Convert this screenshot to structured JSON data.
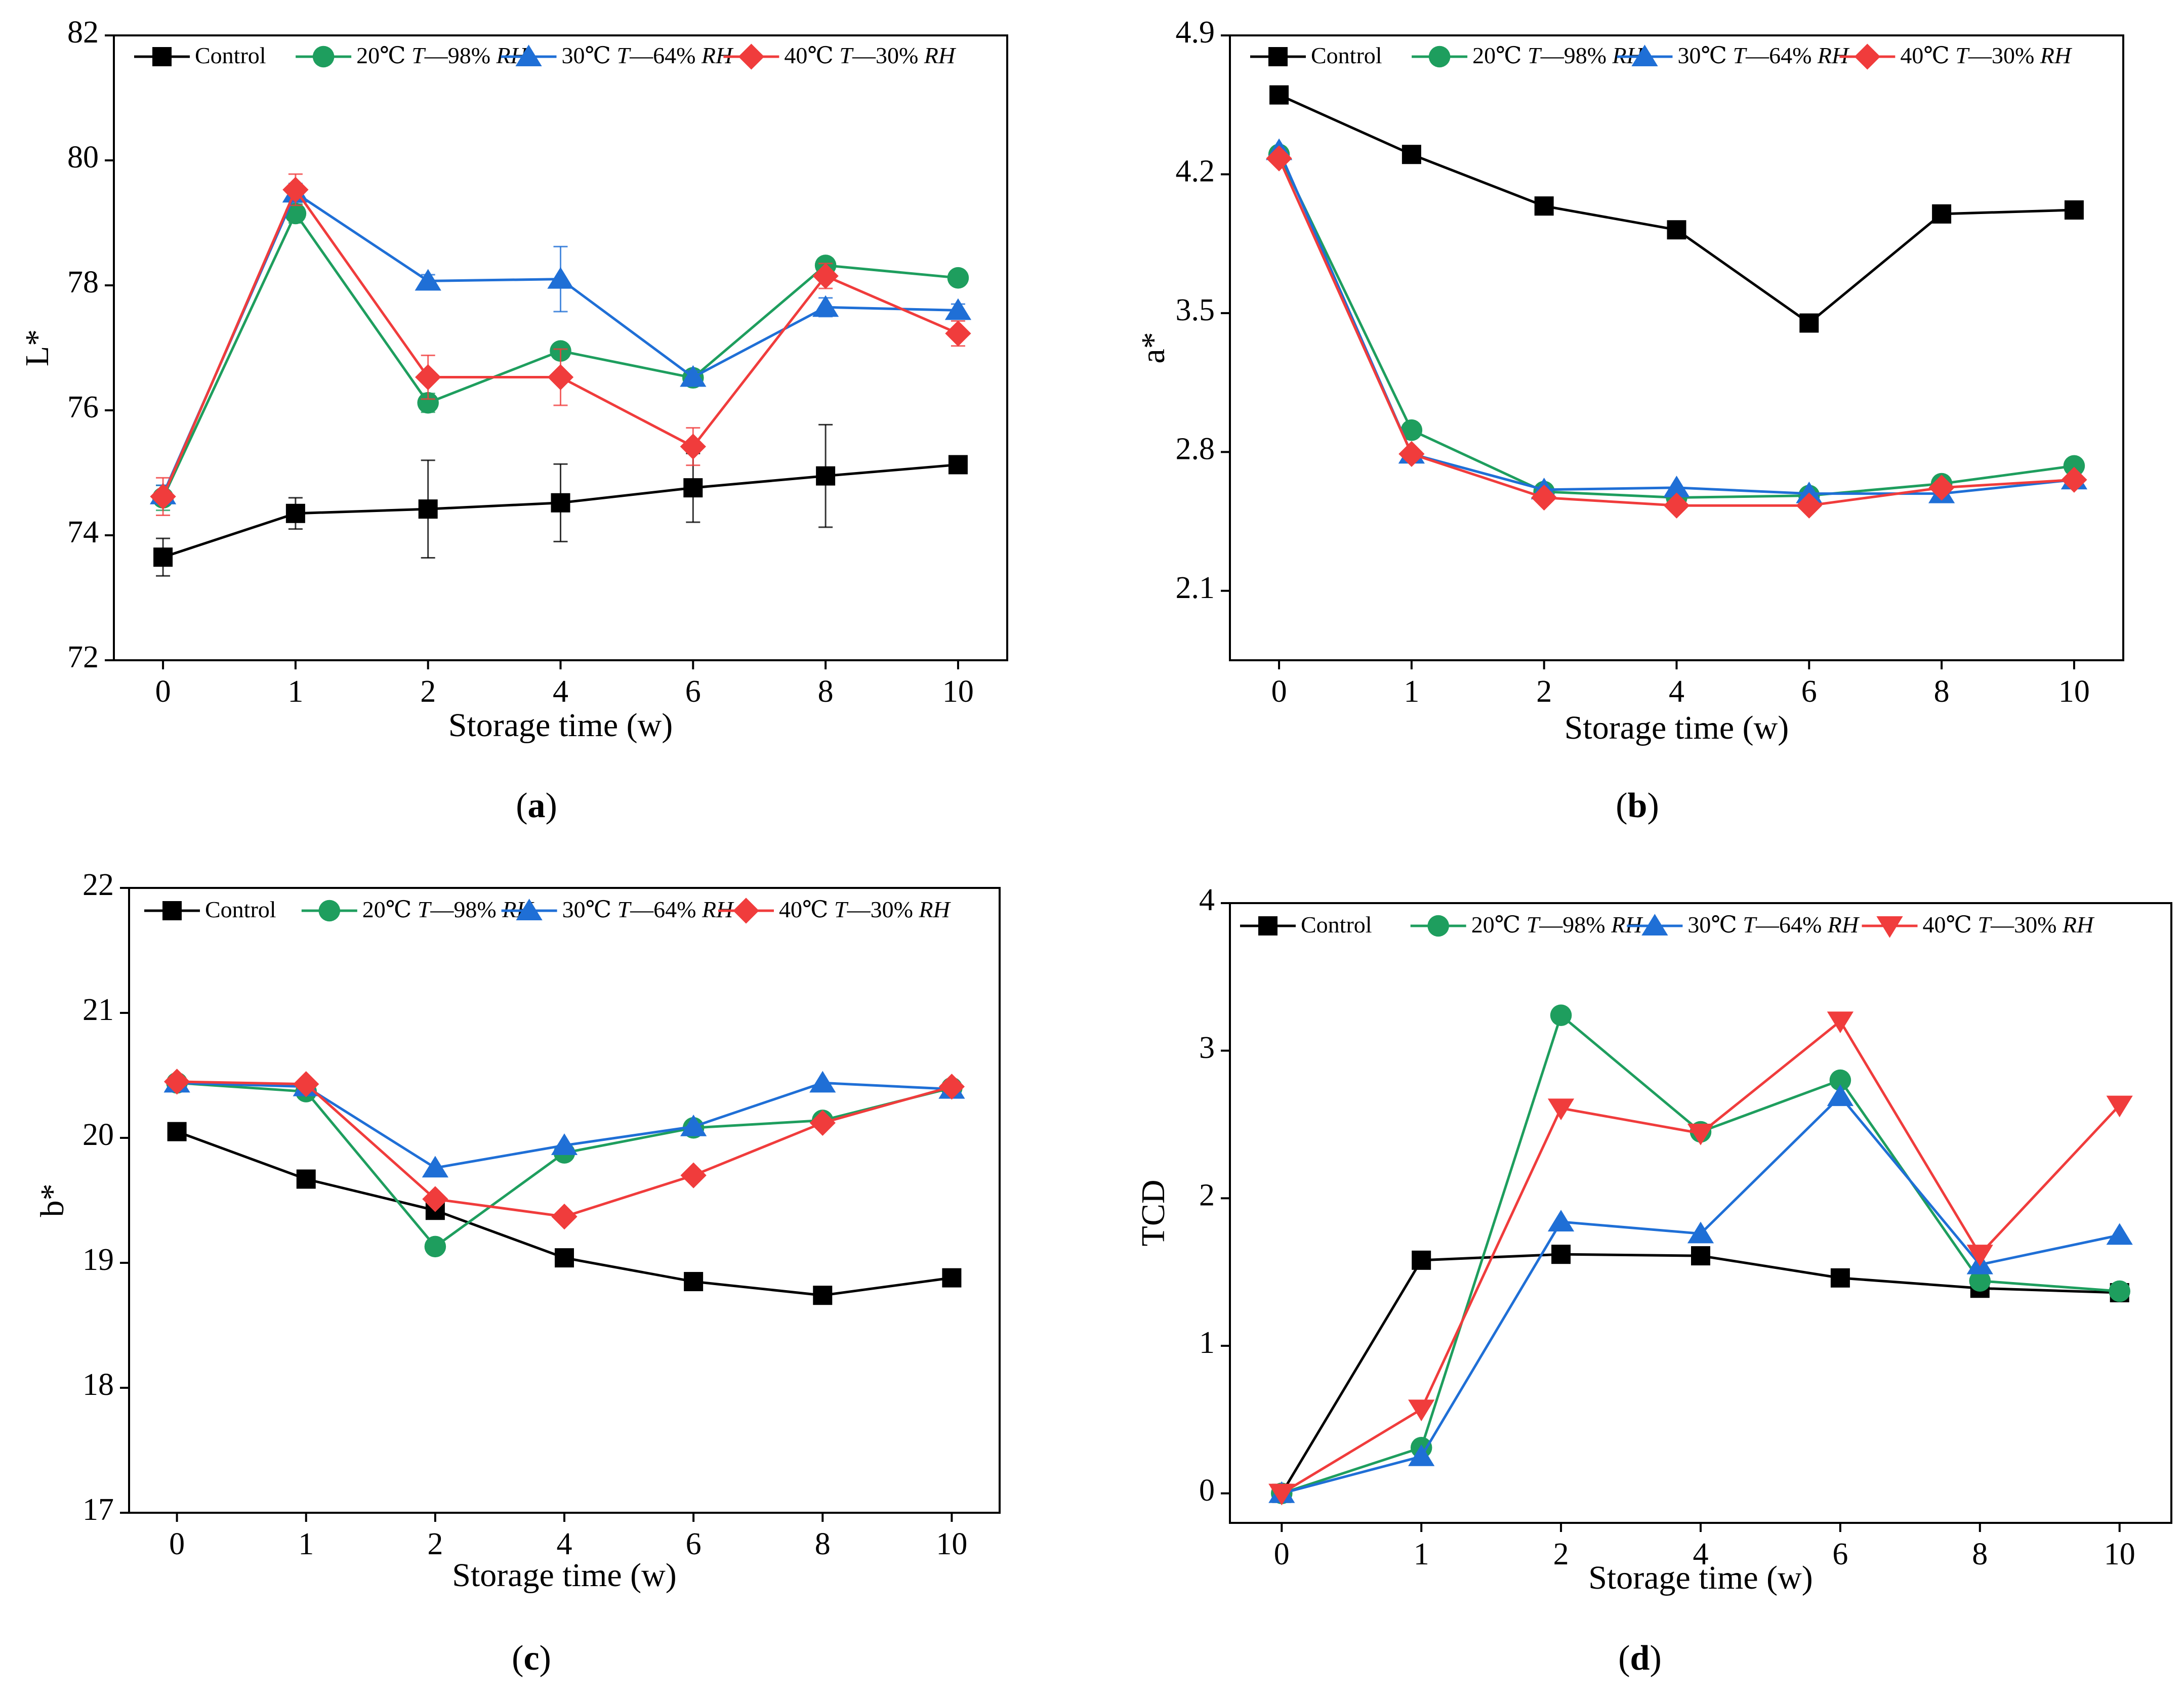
{
  "figure": {
    "panel_labels": [
      "(a)",
      "(b)",
      "(c)",
      "(d)"
    ]
  },
  "colors": {
    "Control": "#000000",
    "20C": "#1e9e5e",
    "30C": "#1f6fd6",
    "40C": "#f03c3c"
  },
  "chart_data": [
    {
      "id": "a",
      "type": "line",
      "panel_label": "(a)",
      "ylabel": "L*",
      "xlabel": "Storage time (w)",
      "categories": [
        "0",
        "1",
        "2",
        "4",
        "6",
        "8",
        "10"
      ],
      "ylim": [
        72,
        82
      ],
      "yticks": [
        "72",
        "74",
        "76",
        "78",
        "80",
        "82"
      ],
      "legend_position": "top",
      "series": [
        {
          "name": "Control",
          "values": [
            73.65,
            74.35,
            74.42,
            74.52,
            74.76,
            74.95,
            75.13
          ],
          "errors": [
            0.3,
            0.25,
            0.78,
            0.62,
            0.55,
            0.82,
            0.05
          ],
          "marker": "square",
          "colorKey": "Control"
        },
        {
          "name": "20℃ T—98% RH",
          "values": [
            74.6,
            79.15,
            76.12,
            76.95,
            76.52,
            78.32,
            78.12
          ],
          "errors": [
            0.2,
            0.15,
            0.15,
            0.1,
            0.1,
            0.1,
            0.1
          ],
          "marker": "circle",
          "colorKey": "20C"
        },
        {
          "name": "30℃ T—64% RH",
          "values": [
            74.65,
            79.48,
            78.07,
            78.1,
            76.53,
            77.65,
            77.6
          ],
          "errors": [
            0.15,
            0.15,
            0.1,
            0.52,
            0.1,
            0.15,
            0.1
          ],
          "marker": "triangle-up",
          "colorKey": "30C"
        },
        {
          "name": "40℃ T—30% RH",
          "values": [
            74.62,
            79.53,
            76.53,
            76.53,
            75.42,
            78.15,
            77.23
          ],
          "errors": [
            0.3,
            0.25,
            0.35,
            0.45,
            0.3,
            0.2,
            0.2
          ],
          "marker": "diamond",
          "colorKey": "40C"
        }
      ]
    },
    {
      "id": "b",
      "type": "line",
      "panel_label": "(b)",
      "ylabel": "a*",
      "xlabel": "Storage time (w)",
      "categories": [
        "0",
        "1",
        "2",
        "4",
        "6",
        "8",
        "10"
      ],
      "ylim": [
        1.75,
        4.9
      ],
      "yticks": [
        "2.1",
        "2.8",
        "3.5",
        "4.2",
        "4.9"
      ],
      "legend_position": "top",
      "series": [
        {
          "name": "Control",
          "values": [
            4.6,
            4.3,
            4.04,
            3.92,
            3.45,
            4.0,
            4.02
          ],
          "marker": "square",
          "colorKey": "Control"
        },
        {
          "name": "20℃ T—98% RH",
          "values": [
            4.3,
            2.91,
            2.6,
            2.57,
            2.58,
            2.64,
            2.73
          ],
          "marker": "circle",
          "colorKey": "20C"
        },
        {
          "name": "30℃ T—64% RH",
          "values": [
            4.32,
            2.79,
            2.61,
            2.62,
            2.59,
            2.59,
            2.66
          ],
          "marker": "triangle-up",
          "colorKey": "30C"
        },
        {
          "name": "40℃ T—30% RH",
          "values": [
            4.28,
            2.79,
            2.57,
            2.53,
            2.53,
            2.62,
            2.66
          ],
          "marker": "diamond",
          "colorKey": "40C"
        }
      ]
    },
    {
      "id": "c",
      "type": "line",
      "panel_label": "(c)",
      "ylabel": "b*",
      "xlabel": "Storage time (w)",
      "categories": [
        "0",
        "1",
        "2",
        "4",
        "6",
        "8",
        "10"
      ],
      "ylim": [
        17,
        22
      ],
      "yticks": [
        "17",
        "18",
        "19",
        "20",
        "21",
        "22"
      ],
      "legend_position": "top",
      "series": [
        {
          "name": "Control",
          "values": [
            20.05,
            19.67,
            19.42,
            19.04,
            18.85,
            18.74,
            18.88
          ],
          "marker": "square",
          "colorKey": "Control"
        },
        {
          "name": "20℃ T—98% RH",
          "values": [
            20.44,
            20.37,
            19.13,
            19.88,
            20.08,
            20.14,
            20.4
          ],
          "marker": "circle",
          "colorKey": "20C"
        },
        {
          "name": "30℃ T—64% RH",
          "values": [
            20.44,
            20.41,
            19.76,
            19.94,
            20.09,
            20.44,
            20.39
          ],
          "marker": "triangle-up",
          "colorKey": "30C"
        },
        {
          "name": "40℃ T—30% RH",
          "values": [
            20.45,
            20.43,
            19.51,
            19.37,
            19.7,
            20.12,
            20.41
          ],
          "marker": "diamond",
          "colorKey": "40C"
        }
      ]
    },
    {
      "id": "d",
      "type": "line",
      "panel_label": "(d)",
      "ylabel": "TCD",
      "xlabel": "Storage time (w)",
      "categories": [
        "0",
        "1",
        "2",
        "4",
        "6",
        "8",
        "10"
      ],
      "ylim": [
        -0.2,
        4
      ],
      "yticks": [
        "0",
        "1",
        "2",
        "3",
        "4"
      ],
      "legend_position": "top",
      "series": [
        {
          "name": "Control",
          "values": [
            0.0,
            1.58,
            1.62,
            1.61,
            1.46,
            1.39,
            1.36
          ],
          "marker": "square",
          "colorKey": "Control"
        },
        {
          "name": "20℃ T—98% RH",
          "values": [
            0.0,
            0.31,
            3.24,
            2.45,
            2.8,
            1.44,
            1.37
          ],
          "marker": "circle",
          "colorKey": "20C"
        },
        {
          "name": "30℃ T—64% RH",
          "values": [
            0.0,
            0.25,
            1.84,
            1.76,
            2.69,
            1.55,
            1.75
          ],
          "marker": "triangle-up",
          "colorKey": "30C"
        },
        {
          "name": "40℃ T—30% RH",
          "values": [
            0.0,
            0.57,
            2.61,
            2.44,
            3.2,
            1.62,
            2.63
          ],
          "marker": "triangle-down",
          "colorKey": "40C"
        }
      ]
    }
  ]
}
